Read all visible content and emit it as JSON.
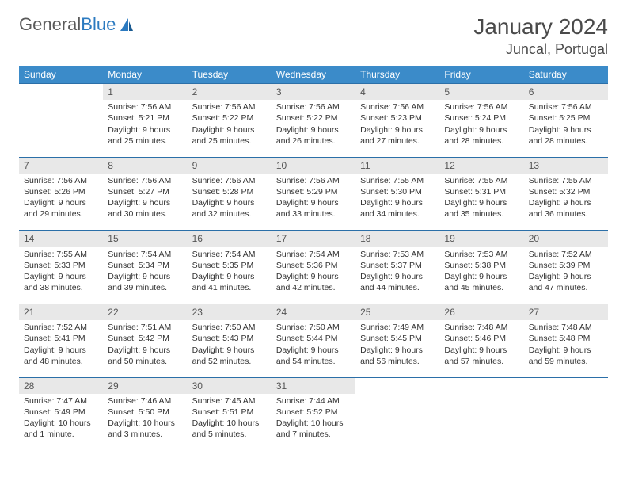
{
  "logo": {
    "text1": "General",
    "text2": "Blue"
  },
  "title": "January 2024",
  "location": "Juncal, Portugal",
  "colors": {
    "header_bg": "#3b8bc9",
    "header_text": "#ffffff",
    "daynum_bg": "#e8e8e8",
    "border": "#2b6fa8",
    "text": "#333333",
    "logo_gray": "#5a5a5a",
    "logo_blue": "#2b7ac0"
  },
  "day_headers": [
    "Sunday",
    "Monday",
    "Tuesday",
    "Wednesday",
    "Thursday",
    "Friday",
    "Saturday"
  ],
  "weeks": [
    [
      {
        "n": "",
        "lines": []
      },
      {
        "n": "1",
        "lines": [
          "Sunrise: 7:56 AM",
          "Sunset: 5:21 PM",
          "Daylight: 9 hours",
          "and 25 minutes."
        ]
      },
      {
        "n": "2",
        "lines": [
          "Sunrise: 7:56 AM",
          "Sunset: 5:22 PM",
          "Daylight: 9 hours",
          "and 25 minutes."
        ]
      },
      {
        "n": "3",
        "lines": [
          "Sunrise: 7:56 AM",
          "Sunset: 5:22 PM",
          "Daylight: 9 hours",
          "and 26 minutes."
        ]
      },
      {
        "n": "4",
        "lines": [
          "Sunrise: 7:56 AM",
          "Sunset: 5:23 PM",
          "Daylight: 9 hours",
          "and 27 minutes."
        ]
      },
      {
        "n": "5",
        "lines": [
          "Sunrise: 7:56 AM",
          "Sunset: 5:24 PM",
          "Daylight: 9 hours",
          "and 28 minutes."
        ]
      },
      {
        "n": "6",
        "lines": [
          "Sunrise: 7:56 AM",
          "Sunset: 5:25 PM",
          "Daylight: 9 hours",
          "and 28 minutes."
        ]
      }
    ],
    [
      {
        "n": "7",
        "lines": [
          "Sunrise: 7:56 AM",
          "Sunset: 5:26 PM",
          "Daylight: 9 hours",
          "and 29 minutes."
        ]
      },
      {
        "n": "8",
        "lines": [
          "Sunrise: 7:56 AM",
          "Sunset: 5:27 PM",
          "Daylight: 9 hours",
          "and 30 minutes."
        ]
      },
      {
        "n": "9",
        "lines": [
          "Sunrise: 7:56 AM",
          "Sunset: 5:28 PM",
          "Daylight: 9 hours",
          "and 32 minutes."
        ]
      },
      {
        "n": "10",
        "lines": [
          "Sunrise: 7:56 AM",
          "Sunset: 5:29 PM",
          "Daylight: 9 hours",
          "and 33 minutes."
        ]
      },
      {
        "n": "11",
        "lines": [
          "Sunrise: 7:55 AM",
          "Sunset: 5:30 PM",
          "Daylight: 9 hours",
          "and 34 minutes."
        ]
      },
      {
        "n": "12",
        "lines": [
          "Sunrise: 7:55 AM",
          "Sunset: 5:31 PM",
          "Daylight: 9 hours",
          "and 35 minutes."
        ]
      },
      {
        "n": "13",
        "lines": [
          "Sunrise: 7:55 AM",
          "Sunset: 5:32 PM",
          "Daylight: 9 hours",
          "and 36 minutes."
        ]
      }
    ],
    [
      {
        "n": "14",
        "lines": [
          "Sunrise: 7:55 AM",
          "Sunset: 5:33 PM",
          "Daylight: 9 hours",
          "and 38 minutes."
        ]
      },
      {
        "n": "15",
        "lines": [
          "Sunrise: 7:54 AM",
          "Sunset: 5:34 PM",
          "Daylight: 9 hours",
          "and 39 minutes."
        ]
      },
      {
        "n": "16",
        "lines": [
          "Sunrise: 7:54 AM",
          "Sunset: 5:35 PM",
          "Daylight: 9 hours",
          "and 41 minutes."
        ]
      },
      {
        "n": "17",
        "lines": [
          "Sunrise: 7:54 AM",
          "Sunset: 5:36 PM",
          "Daylight: 9 hours",
          "and 42 minutes."
        ]
      },
      {
        "n": "18",
        "lines": [
          "Sunrise: 7:53 AM",
          "Sunset: 5:37 PM",
          "Daylight: 9 hours",
          "and 44 minutes."
        ]
      },
      {
        "n": "19",
        "lines": [
          "Sunrise: 7:53 AM",
          "Sunset: 5:38 PM",
          "Daylight: 9 hours",
          "and 45 minutes."
        ]
      },
      {
        "n": "20",
        "lines": [
          "Sunrise: 7:52 AM",
          "Sunset: 5:39 PM",
          "Daylight: 9 hours",
          "and 47 minutes."
        ]
      }
    ],
    [
      {
        "n": "21",
        "lines": [
          "Sunrise: 7:52 AM",
          "Sunset: 5:41 PM",
          "Daylight: 9 hours",
          "and 48 minutes."
        ]
      },
      {
        "n": "22",
        "lines": [
          "Sunrise: 7:51 AM",
          "Sunset: 5:42 PM",
          "Daylight: 9 hours",
          "and 50 minutes."
        ]
      },
      {
        "n": "23",
        "lines": [
          "Sunrise: 7:50 AM",
          "Sunset: 5:43 PM",
          "Daylight: 9 hours",
          "and 52 minutes."
        ]
      },
      {
        "n": "24",
        "lines": [
          "Sunrise: 7:50 AM",
          "Sunset: 5:44 PM",
          "Daylight: 9 hours",
          "and 54 minutes."
        ]
      },
      {
        "n": "25",
        "lines": [
          "Sunrise: 7:49 AM",
          "Sunset: 5:45 PM",
          "Daylight: 9 hours",
          "and 56 minutes."
        ]
      },
      {
        "n": "26",
        "lines": [
          "Sunrise: 7:48 AM",
          "Sunset: 5:46 PM",
          "Daylight: 9 hours",
          "and 57 minutes."
        ]
      },
      {
        "n": "27",
        "lines": [
          "Sunrise: 7:48 AM",
          "Sunset: 5:48 PM",
          "Daylight: 9 hours",
          "and 59 minutes."
        ]
      }
    ],
    [
      {
        "n": "28",
        "lines": [
          "Sunrise: 7:47 AM",
          "Sunset: 5:49 PM",
          "Daylight: 10 hours",
          "and 1 minute."
        ]
      },
      {
        "n": "29",
        "lines": [
          "Sunrise: 7:46 AM",
          "Sunset: 5:50 PM",
          "Daylight: 10 hours",
          "and 3 minutes."
        ]
      },
      {
        "n": "30",
        "lines": [
          "Sunrise: 7:45 AM",
          "Sunset: 5:51 PM",
          "Daylight: 10 hours",
          "and 5 minutes."
        ]
      },
      {
        "n": "31",
        "lines": [
          "Sunrise: 7:44 AM",
          "Sunset: 5:52 PM",
          "Daylight: 10 hours",
          "and 7 minutes."
        ]
      },
      {
        "n": "",
        "lines": []
      },
      {
        "n": "",
        "lines": []
      },
      {
        "n": "",
        "lines": []
      }
    ]
  ]
}
